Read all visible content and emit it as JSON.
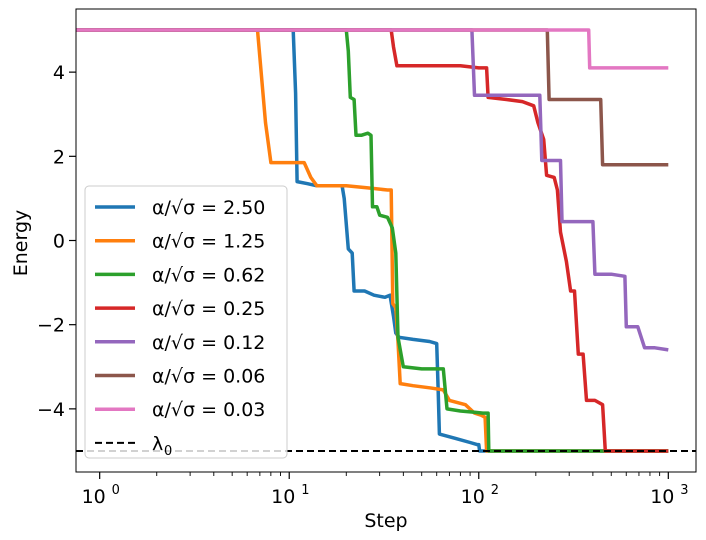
{
  "chart_data": {
    "type": "line",
    "xscale": "log",
    "xlabel": "Step",
    "ylabel": "Energy",
    "xlim": [
      0.75,
      1400
    ],
    "ylim": [
      -5.5,
      5.5
    ],
    "xticks": [
      {
        "value": 1,
        "base": "10",
        "exp": "0"
      },
      {
        "value": 10,
        "base": "10",
        "exp": "1"
      },
      {
        "value": 100,
        "base": "10",
        "exp": "2"
      },
      {
        "value": 1000,
        "base": "10",
        "exp": "3"
      }
    ],
    "yticks": [
      {
        "value": -4,
        "label": "−4"
      },
      {
        "value": -2,
        "label": "−2"
      },
      {
        "value": 0,
        "label": "0"
      },
      {
        "value": 2,
        "label": "2"
      },
      {
        "value": 4,
        "label": "4"
      }
    ],
    "legend": {
      "placement": "lower-left",
      "prefix": "α/√σ = ",
      "reference_label": "λ",
      "reference_subscript": "0"
    },
    "reference_line": {
      "name": "lambda_0",
      "y": -5.0,
      "color": "#000000",
      "style": "dashed"
    },
    "series": [
      {
        "name": "2.50",
        "color": "#1f77b4",
        "points": [
          [
            0.7,
            5.0
          ],
          [
            10.5,
            5.0
          ],
          [
            10.8,
            3.5
          ],
          [
            11.0,
            1.4
          ],
          [
            12.5,
            1.35
          ],
          [
            14,
            1.3
          ],
          [
            16,
            1.3
          ],
          [
            19,
            1.3
          ],
          [
            19.5,
            1.0
          ],
          [
            20.5,
            -0.2
          ],
          [
            21.5,
            -0.3
          ],
          [
            22,
            -1.2
          ],
          [
            25,
            -1.2
          ],
          [
            28,
            -1.3
          ],
          [
            32,
            -1.35
          ],
          [
            34,
            -1.3
          ],
          [
            35.5,
            -1.8
          ],
          [
            36.5,
            -2.2
          ],
          [
            38,
            -2.3
          ],
          [
            45,
            -2.35
          ],
          [
            55,
            -2.4
          ],
          [
            60,
            -2.45
          ],
          [
            61,
            -3.5
          ],
          [
            62,
            -4.6
          ],
          [
            75,
            -4.7
          ],
          [
            90,
            -4.8
          ],
          [
            98,
            -4.85
          ],
          [
            100,
            -4.85
          ],
          [
            101,
            -5.0
          ],
          [
            1000,
            -5.0
          ]
        ]
      },
      {
        "name": "1.25",
        "color": "#ff7f0e",
        "points": [
          [
            0.7,
            5.0
          ],
          [
            6.8,
            5.0
          ],
          [
            7.5,
            2.8
          ],
          [
            8.0,
            1.85
          ],
          [
            10,
            1.85
          ],
          [
            12,
            1.85
          ],
          [
            13,
            1.5
          ],
          [
            14,
            1.3
          ],
          [
            20,
            1.3
          ],
          [
            26,
            1.25
          ],
          [
            33,
            1.2
          ],
          [
            34.5,
            1.2
          ],
          [
            35.2,
            -1.5
          ],
          [
            36.5,
            -1.6
          ],
          [
            37.5,
            -2.4
          ],
          [
            38.5,
            -3.4
          ],
          [
            45,
            -3.45
          ],
          [
            55,
            -3.5
          ],
          [
            65,
            -3.55
          ],
          [
            70,
            -3.8
          ],
          [
            85,
            -3.9
          ],
          [
            95,
            -4.1
          ],
          [
            103,
            -4.15
          ],
          [
            108,
            -4.2
          ],
          [
            110,
            -5.0
          ],
          [
            1000,
            -5.0
          ]
        ]
      },
      {
        "name": "0.62",
        "color": "#2ca02c",
        "points": [
          [
            0.7,
            5.0
          ],
          [
            20,
            5.0
          ],
          [
            20.5,
            4.5
          ],
          [
            21,
            3.4
          ],
          [
            22,
            3.35
          ],
          [
            22.5,
            2.5
          ],
          [
            24,
            2.5
          ],
          [
            26,
            2.55
          ],
          [
            27,
            2.5
          ],
          [
            27.5,
            0.8
          ],
          [
            29,
            0.8
          ],
          [
            30,
            0.6
          ],
          [
            33,
            0.55
          ],
          [
            35,
            0.3
          ],
          [
            36.5,
            -0.3
          ],
          [
            37.5,
            -2.3
          ],
          [
            40,
            -3.0
          ],
          [
            50,
            -3.05
          ],
          [
            65,
            -3.05
          ],
          [
            68,
            -4.0
          ],
          [
            80,
            -4.05
          ],
          [
            95,
            -4.08
          ],
          [
            105,
            -4.1
          ],
          [
            112,
            -4.1
          ],
          [
            113,
            -5.0
          ],
          [
            1000,
            -5.0
          ]
        ]
      },
      {
        "name": "0.25",
        "color": "#d62728",
        "points": [
          [
            0.7,
            5.0
          ],
          [
            34.5,
            5.0
          ],
          [
            35.5,
            4.6
          ],
          [
            37,
            4.15
          ],
          [
            50,
            4.15
          ],
          [
            80,
            4.15
          ],
          [
            100,
            4.1
          ],
          [
            110,
            4.1
          ],
          [
            112,
            3.4
          ],
          [
            140,
            3.35
          ],
          [
            170,
            3.3
          ],
          [
            195,
            3.2
          ],
          [
            205,
            2.8
          ],
          [
            220,
            2.4
          ],
          [
            228,
            1.55
          ],
          [
            250,
            1.5
          ],
          [
            260,
            1.2
          ],
          [
            270,
            0.2
          ],
          [
            290,
            -0.5
          ],
          [
            305,
            -1.2
          ],
          [
            320,
            -1.2
          ],
          [
            335,
            -2.7
          ],
          [
            355,
            -2.7
          ],
          [
            370,
            -3.8
          ],
          [
            410,
            -3.8
          ],
          [
            450,
            -3.9
          ],
          [
            465,
            -5.0
          ],
          [
            1000,
            -5.0
          ]
        ]
      },
      {
        "name": "0.12",
        "color": "#9467bd",
        "points": [
          [
            0.7,
            5.0
          ],
          [
            92,
            5.0
          ],
          [
            95,
            3.45
          ],
          [
            150,
            3.45
          ],
          [
            210,
            3.45
          ],
          [
            215,
            1.9
          ],
          [
            250,
            1.9
          ],
          [
            270,
            1.9
          ],
          [
            275,
            0.45
          ],
          [
            350,
            0.45
          ],
          [
            400,
            0.45
          ],
          [
            410,
            -0.8
          ],
          [
            500,
            -0.8
          ],
          [
            590,
            -0.85
          ],
          [
            600,
            -2.05
          ],
          [
            690,
            -2.05
          ],
          [
            750,
            -2.55
          ],
          [
            850,
            -2.55
          ],
          [
            1000,
            -2.6
          ]
        ]
      },
      {
        "name": "0.06",
        "color": "#8c564b",
        "points": [
          [
            0.7,
            5.0
          ],
          [
            230,
            5.0
          ],
          [
            235,
            3.35
          ],
          [
            300,
            3.35
          ],
          [
            440,
            3.35
          ],
          [
            450,
            1.8
          ],
          [
            700,
            1.8
          ],
          [
            1000,
            1.8
          ]
        ]
      },
      {
        "name": "0.03",
        "color": "#e377c2",
        "points": [
          [
            0.7,
            5.0
          ],
          [
            380,
            5.0
          ],
          [
            385,
            4.1
          ],
          [
            600,
            4.1
          ],
          [
            1000,
            4.1
          ]
        ]
      }
    ]
  }
}
